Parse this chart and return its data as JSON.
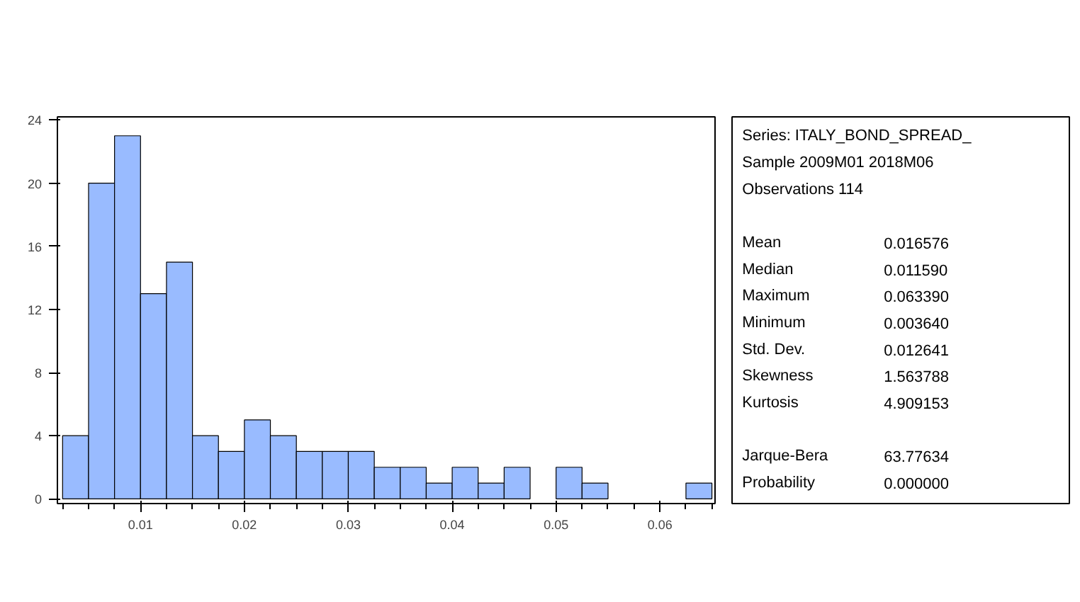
{
  "chart_data": {
    "type": "histogram",
    "bins": [
      0.0025,
      0.005,
      0.0075,
      0.01,
      0.0125,
      0.015,
      0.0175,
      0.02,
      0.0225,
      0.025,
      0.0275,
      0.03,
      0.0325,
      0.035,
      0.0375,
      0.04,
      0.0425,
      0.045,
      0.0475,
      0.05,
      0.0525,
      0.055,
      0.0575,
      0.06,
      0.0625,
      0.065
    ],
    "values": [
      4,
      20,
      23,
      13,
      15,
      4,
      3,
      5,
      4,
      3,
      3,
      3,
      2,
      2,
      1,
      2,
      1,
      2,
      0,
      2,
      1,
      0,
      0,
      0,
      1
    ],
    "color": "#99bbff",
    "xlim": [
      0.002,
      0.0653
    ],
    "ylim": [
      -0.3,
      24.2
    ],
    "xticks": [
      0.01,
      0.02,
      0.03,
      0.04,
      0.05,
      0.06
    ],
    "yticks": [
      0,
      4,
      8,
      12,
      16,
      20,
      24
    ],
    "grid": false,
    "annotations": [
      "Series: ITALY_BOND_SPREAD_",
      "Sample 2009M01 2018M06",
      "Observations 114",
      "Mean",
      "0.016576",
      "Median",
      "0.011590",
      "Maximum",
      "0.063390",
      "Minimum",
      "0.003640",
      "Std. Dev.",
      "0.012641",
      "Skewness",
      "1.563788",
      "Kurtosis",
      "4.909153",
      "Jarque-Bera",
      "63.77634",
      "Probability",
      "0.000000"
    ]
  }
}
